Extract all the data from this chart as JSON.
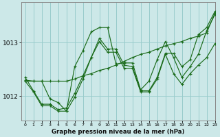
{
  "title": "Graphe pression niveau de la mer (hPa)",
  "bg_color": "#cce8e8",
  "grid_color": "#99cccc",
  "line_color": "#1a6b1a",
  "xlim": [
    -0.5,
    23
  ],
  "ylim": [
    1011.55,
    1013.75
  ],
  "yticks": [
    1012,
    1013
  ],
  "xticks": [
    0,
    1,
    2,
    3,
    4,
    5,
    6,
    7,
    8,
    9,
    10,
    11,
    12,
    13,
    14,
    15,
    16,
    17,
    18,
    19,
    20,
    21,
    22,
    23
  ],
  "series": [
    [
      1012.35,
      1012.1,
      1011.85,
      1011.85,
      1011.75,
      1011.78,
      1012.05,
      1012.38,
      1012.72,
      1013.08,
      1012.88,
      1012.88,
      1012.58,
      1012.55,
      1012.1,
      1012.1,
      1012.35,
      1012.8,
      1012.8,
      1012.55,
      1012.68,
      1013.15,
      1013.28,
      1013.58
    ],
    [
      1012.3,
      1012.28,
      1012.28,
      1011.95,
      1011.88,
      1011.72,
      1012.55,
      1012.85,
      1013.2,
      1013.28,
      1013.28,
      1012.6,
      1012.62,
      1012.62,
      1012.12,
      1012.28,
      1012.68,
      1013.02,
      1012.72,
      1012.35,
      1012.55,
      1012.78,
      1013.22,
      1013.52
    ],
    [
      1012.28,
      1012.28,
      1012.28,
      1012.28,
      1012.28,
      1012.28,
      1012.32,
      1012.38,
      1012.42,
      1012.48,
      1012.52,
      1012.58,
      1012.65,
      1012.72,
      1012.78,
      1012.82,
      1012.88,
      1012.94,
      1012.98,
      1013.02,
      1013.08,
      1013.12,
      1013.18,
      1013.55
    ],
    [
      1012.28,
      1012.08,
      1011.82,
      1011.82,
      1011.72,
      1011.72,
      1011.98,
      1012.32,
      1012.72,
      1013.02,
      1012.82,
      1012.82,
      1012.52,
      1012.52,
      1012.08,
      1012.08,
      1012.32,
      1012.78,
      1012.42,
      1012.22,
      1012.42,
      1012.58,
      1012.72,
      1012.98
    ]
  ]
}
